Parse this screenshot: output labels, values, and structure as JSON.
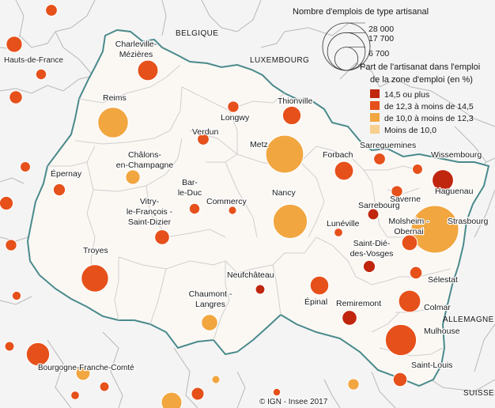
{
  "legend": {
    "size_title": "Nombre d'emplois de type artisanal",
    "size_values": [
      28000,
      17700,
      6700
    ],
    "size_labels": [
      "28 000",
      "17 700",
      "6 700"
    ],
    "color_title_line1": "Part de l'artisanat dans l'emploi",
    "color_title_line2": "de la zone d'emploi (en %)",
    "classes": [
      {
        "label": "14,5 ou plus",
        "color": "#c0260e"
      },
      {
        "label": "de 12,3 à moins de 14,5",
        "color": "#e6501a"
      },
      {
        "label": "de 10,0 à moins de 12,3",
        "color": "#f1a640"
      },
      {
        "label": "Moins de 10,0",
        "color": "#f7cf8e"
      }
    ]
  },
  "countries": {
    "belgique": "BELGIQUE",
    "luxembourg": "LUXEMBOURG",
    "allemagne": "ALLEMAGNE",
    "suisse": "SUISSE"
  },
  "regions": {
    "hdf": "Hauts-de-France",
    "bfc": "Bourgogne-Franche-Comté"
  },
  "credit": "© IGN - Insee 2017",
  "zones": [
    {
      "name": "Charleville-Mézières",
      "class": 1,
      "jobs": 5200
    },
    {
      "name": "Reims",
      "class": 2,
      "jobs": 11500
    },
    {
      "name": "Longwy",
      "class": 1,
      "jobs": 1600
    },
    {
      "name": "Thionville",
      "class": 1,
      "jobs": 4200
    },
    {
      "name": "Verdun",
      "class": 1,
      "jobs": 1700
    },
    {
      "name": "Metz",
      "class": 2,
      "jobs": 17700
    },
    {
      "name": "Châlons-en-Champagne",
      "class": 2,
      "jobs": 2600
    },
    {
      "name": "Forbach",
      "class": 1,
      "jobs": 4400
    },
    {
      "name": "Sarreguemines",
      "class": 1,
      "jobs": 1700
    },
    {
      "name": "Wissembourg",
      "class": 1,
      "jobs": 1300
    },
    {
      "name": "Haguenau",
      "class": 0,
      "jobs": 5600
    },
    {
      "name": "Épernay",
      "class": 1,
      "jobs": 1800
    },
    {
      "name": "Bar-le-Duc",
      "class": 1,
      "jobs": 1400
    },
    {
      "name": "Commercy",
      "class": 1,
      "jobs": 800
    },
    {
      "name": "Nancy",
      "class": 2,
      "jobs": 14500
    },
    {
      "name": "Saverne",
      "class": 1,
      "jobs": 1600
    },
    {
      "name": "Vitry-le-François - Saint-Dizier",
      "class": 1,
      "jobs": 2700
    },
    {
      "name": "Sarrebourg",
      "class": 0,
      "jobs": 1500
    },
    {
      "name": "Strasbourg",
      "class": 2,
      "jobs": 28000
    },
    {
      "name": "Lunéville",
      "class": 1,
      "jobs": 900
    },
    {
      "name": "Molsheim - Obernai",
      "class": 1,
      "jobs": 3000
    },
    {
      "name": "Troyes",
      "class": 1,
      "jobs": 9200
    },
    {
      "name": "Saint-Dié-des-Vosges",
      "class": 0,
      "jobs": 1800
    },
    {
      "name": "Neufchâteau",
      "class": 0,
      "jobs": 1100
    },
    {
      "name": "Sélestat",
      "class": 1,
      "jobs": 1900
    },
    {
      "name": "Chaumont - Langres",
      "class": 2,
      "jobs": 3300
    },
    {
      "name": "Épinal",
      "class": 1,
      "jobs": 4300
    },
    {
      "name": "Remiremont",
      "class": 0,
      "jobs": 2700
    },
    {
      "name": "Colmar",
      "class": 1,
      "jobs": 6000
    },
    {
      "name": "Mulhouse",
      "class": 1,
      "jobs": 12000
    },
    {
      "name": "Saint-Louis",
      "class": 1,
      "jobs": 2400
    }
  ],
  "outside_zones": [
    {
      "class": 1,
      "jobs": 3200
    },
    {
      "class": 1,
      "jobs": 1700
    },
    {
      "class": 1,
      "jobs": 1400
    },
    {
      "class": 1,
      "jobs": 2100
    },
    {
      "class": 1,
      "jobs": 1300
    },
    {
      "class": 1,
      "jobs": 2300
    },
    {
      "class": 1,
      "jobs": 1600
    },
    {
      "class": 1,
      "jobs": 1000
    },
    {
      "class": 1,
      "jobs": 1100
    },
    {
      "class": 1,
      "jobs": 6700
    },
    {
      "class": 2,
      "jobs": 2500
    },
    {
      "class": 1,
      "jobs": 1100
    },
    {
      "class": 1,
      "jobs": 900
    },
    {
      "class": 2,
      "jobs": 5200
    },
    {
      "class": 1,
      "jobs": 2000
    },
    {
      "class": 2,
      "jobs": 800
    },
    {
      "class": 1,
      "jobs": 700
    },
    {
      "class": 2,
      "jobs": 1600
    }
  ]
}
